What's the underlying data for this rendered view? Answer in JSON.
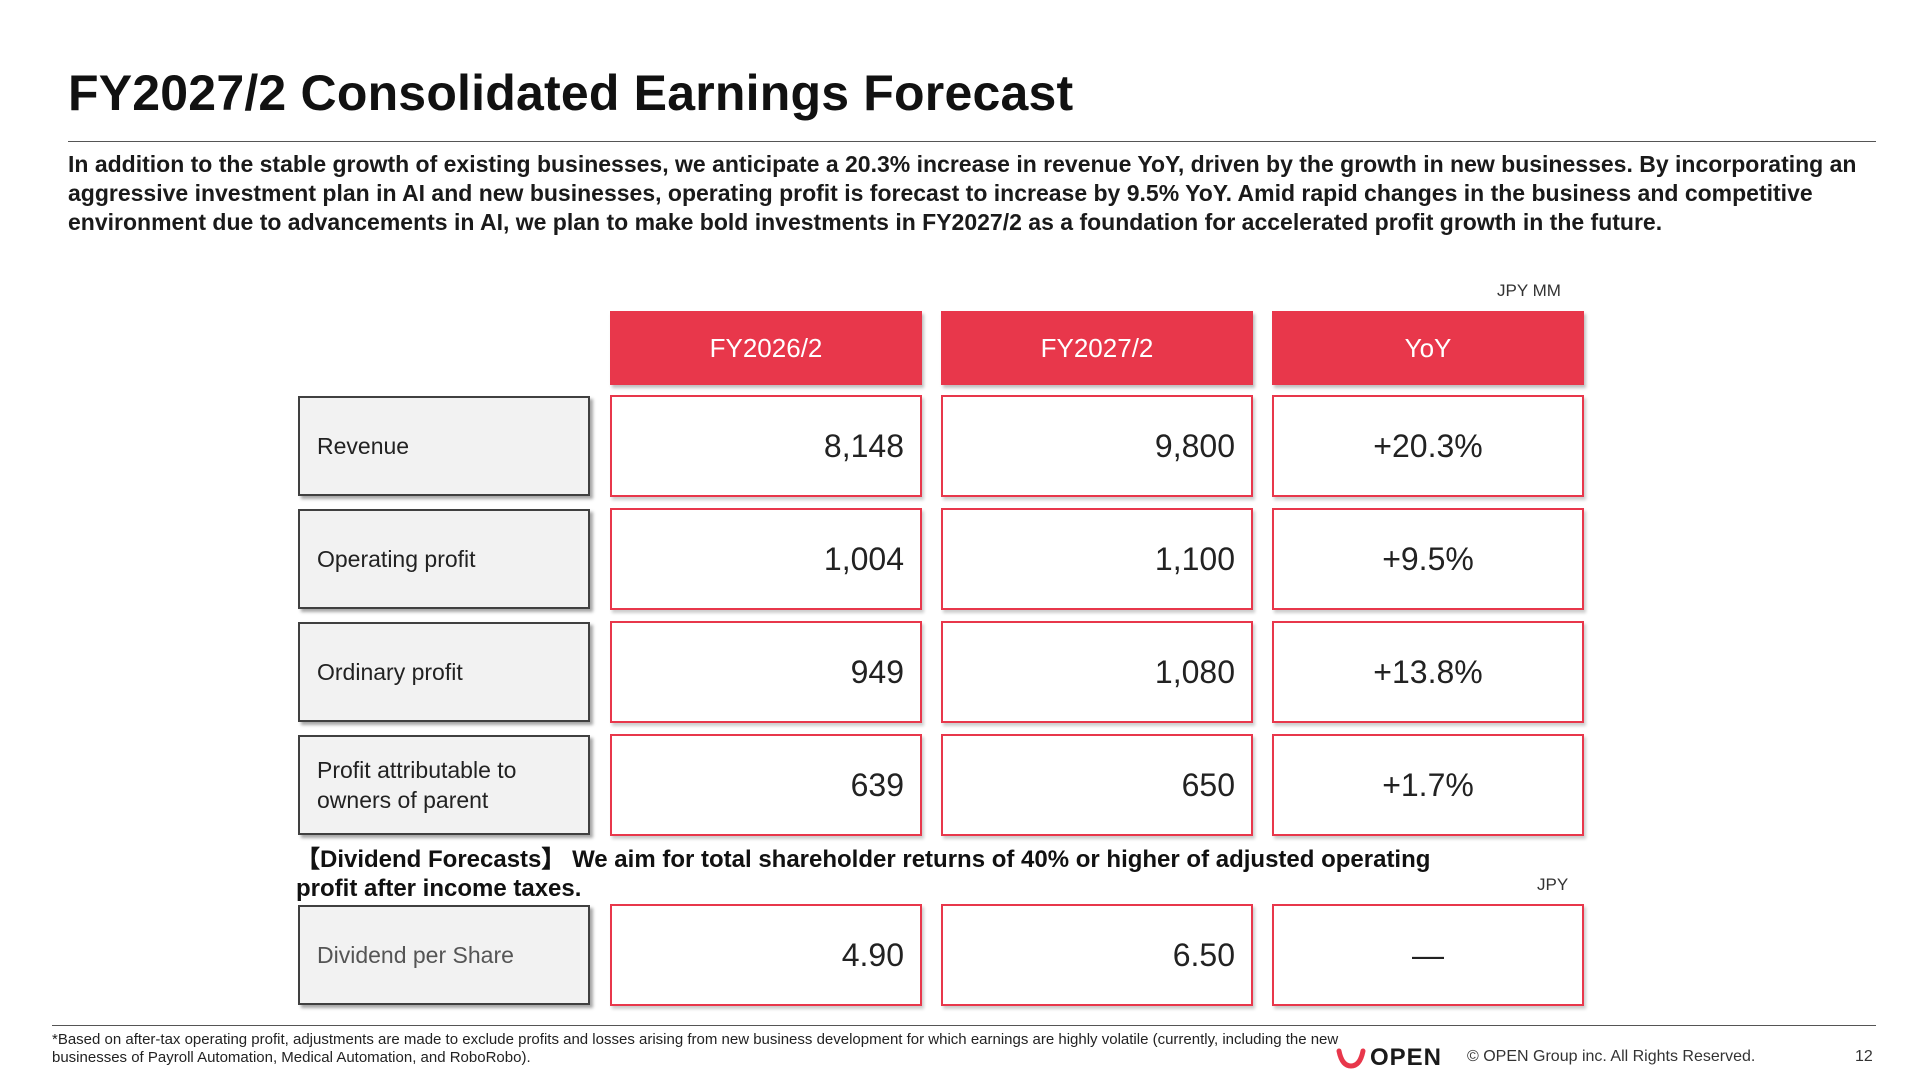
{
  "title": "FY2027/2  Consolidated Earnings Forecast",
  "intro": "In addition to the stable growth of existing businesses, we anticipate a 20.3% increase in revenue YoY, driven by the growth in new businesses. By incorporating an aggressive investment plan in AI and new businesses, operating profit is forecast to increase by 9.5% YoY. Amid rapid changes in the business and competitive environment due to advancements in AI, we plan to make bold investments in FY2027/2 as a foundation for accelerated profit growth in the future.",
  "unit_main": "JPY MM",
  "columns": [
    "FY2026/2",
    "FY2027/2",
    "YoY"
  ],
  "rows": [
    {
      "label": "Revenue",
      "fy2026": "8,148",
      "fy2027": "9,800",
      "yoy": "+20.3%"
    },
    {
      "label": "Operating profit",
      "fy2026": "1,004",
      "fy2027": "1,100",
      "yoy": "+9.5%"
    },
    {
      "label": "Ordinary profit",
      "fy2026": "949",
      "fy2027": "1,080",
      "yoy": "+13.8%"
    },
    {
      "label": "Profit attributable to owners of parent",
      "fy2026": "639",
      "fy2027": "650",
      "yoy": "+1.7%"
    }
  ],
  "dividend": {
    "heading": "【Dividend Forecasts】 We aim for total shareholder returns of 40% or higher of adjusted operating profit after income taxes.",
    "unit": "JPY",
    "label": "Dividend per Share",
    "fy2026": "4.90",
    "fy2027": "6.50",
    "yoy": "—"
  },
  "footnote": "*Based on after-tax operating profit, adjustments are made to exclude profits and losses arising from new business development for which earnings are highly volatile (currently, including the new businesses of Payroll Automation, Medical Automation, and RoboRobo).",
  "logo_text": "OPEN",
  "copyright": "© OPEN Group inc. All Rights Reserved.",
  "page_number": "12",
  "colors": {
    "accent": "#e8374b",
    "label_bg": "#f2f2f2",
    "label_border": "#404040",
    "logo_mark": "#e8374b"
  }
}
